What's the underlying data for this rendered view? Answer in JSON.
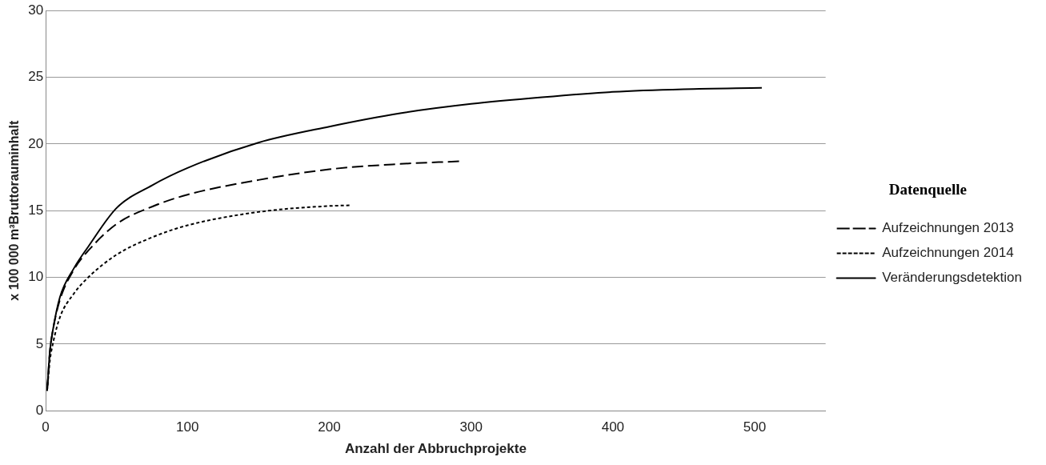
{
  "chart_data": {
    "type": "line",
    "xlabel": "Anzahl der Abbruchprojekte",
    "ylabel": "x 100 000 m³Bruttorauminhalt",
    "legend_title": "Datenquelle",
    "legend": "right",
    "grid": "y",
    "marker": "none",
    "xlim": [
      0,
      550
    ],
    "xticks": [
      0,
      100,
      200,
      300,
      400,
      500
    ],
    "ylim": [
      0,
      30
    ],
    "yticks": [
      0,
      5,
      10,
      15,
      20,
      25,
      30
    ],
    "series": [
      {
        "name": "Aufzeichnungen 2013",
        "color": "#000000",
        "line_style": "dashed",
        "x": [
          1,
          3,
          5,
          10,
          20,
          30,
          50,
          75,
          100,
          150,
          200,
          250,
          292
        ],
        "values": [
          1.5,
          4.5,
          6,
          8.3,
          10.6,
          12,
          14,
          15.3,
          16.2,
          17.3,
          18.1,
          18.5,
          18.7
        ]
      },
      {
        "name": "Aufzeichnungen 2014",
        "color": "#000000",
        "line_style": "dotted",
        "x": [
          1,
          3,
          5,
          10,
          20,
          30,
          50,
          75,
          100,
          150,
          200,
          215
        ],
        "values": [
          1.5,
          3.8,
          5,
          7,
          8.8,
          10,
          11.7,
          13,
          13.9,
          14.9,
          15.35,
          15.4
        ]
      },
      {
        "name": "Veränderungsdetektion",
        "color": "#000000",
        "line_style": "solid",
        "x": [
          1,
          3,
          5,
          10,
          20,
          30,
          50,
          75,
          100,
          150,
          200,
          250,
          300,
          350,
          400,
          450,
          505
        ],
        "values": [
          1.5,
          4.5,
          6,
          8.5,
          10.7,
          12.3,
          15.2,
          16.9,
          18.2,
          20.1,
          21.3,
          22.3,
          23,
          23.5,
          23.9,
          24.1,
          24.2
        ]
      }
    ]
  }
}
